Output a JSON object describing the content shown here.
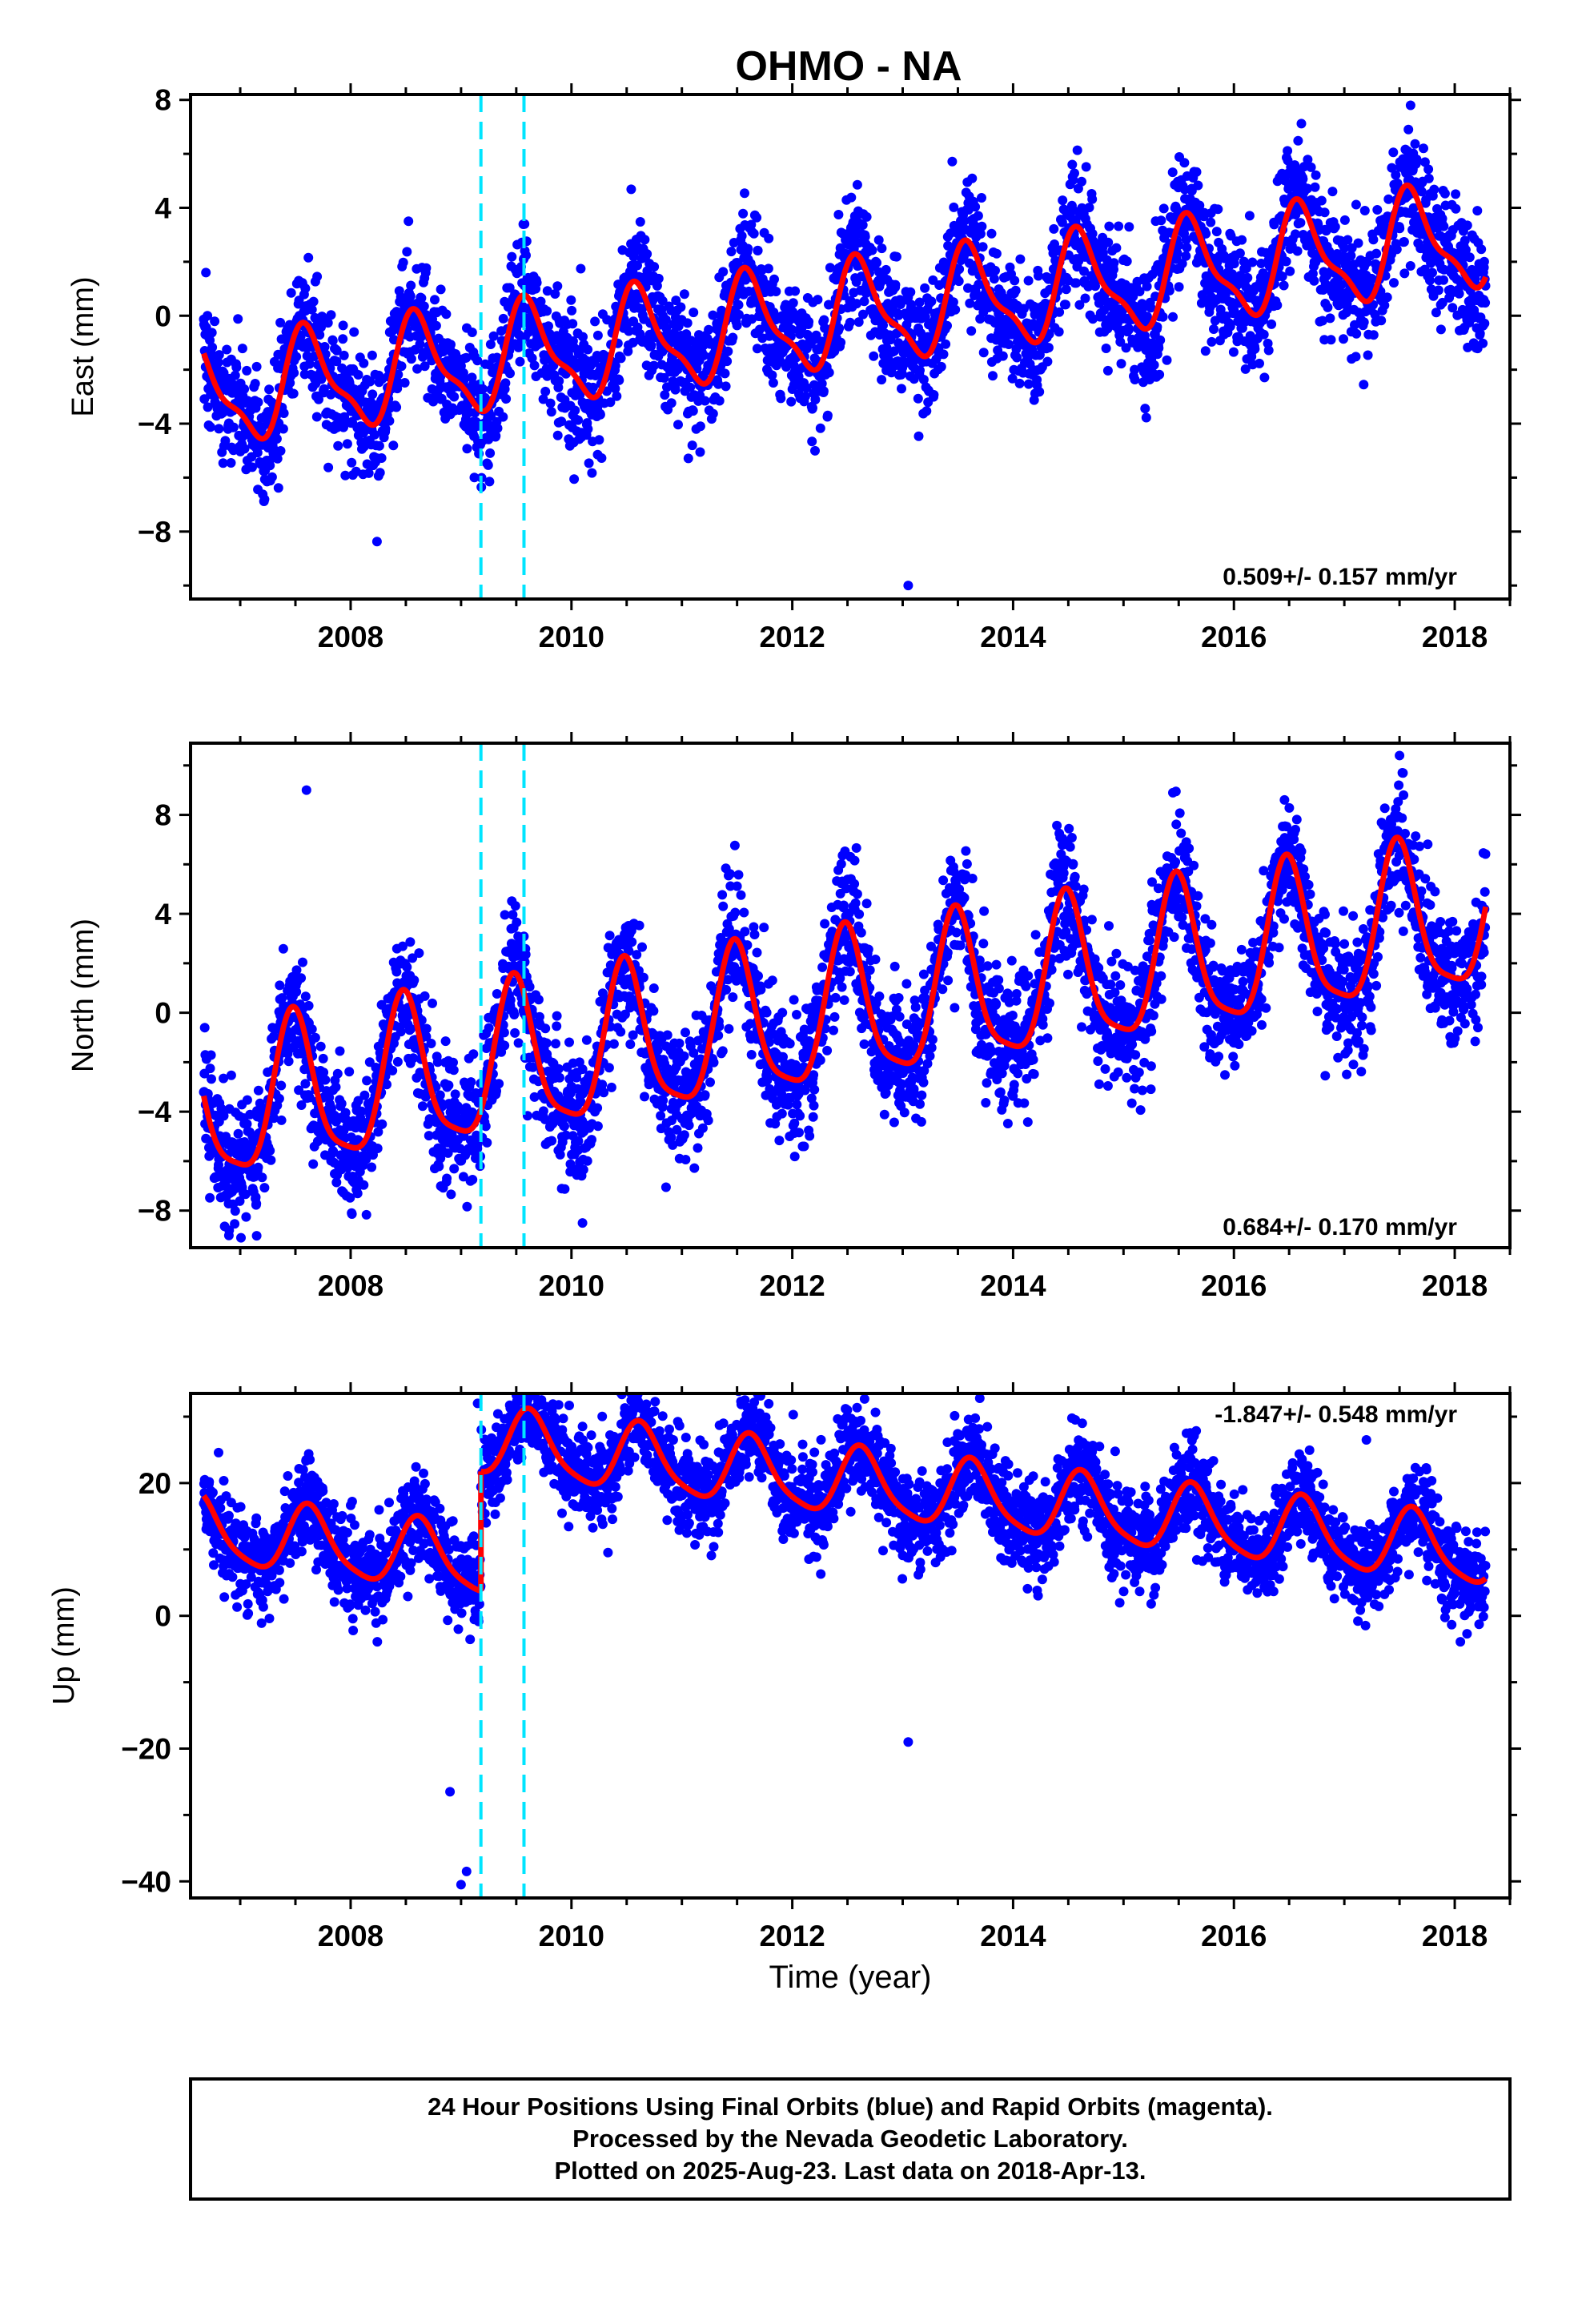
{
  "title": "OHMO - NA",
  "chart_data": [
    {
      "type": "scatter",
      "ylabel": "East (mm)",
      "rate": "0.509+/- 0.157 mm/yr",
      "xlim": [
        2006.55,
        2018.5
      ],
      "ylim": [
        -10.5,
        8.2
      ],
      "yticks": [
        -8,
        -4,
        0,
        4,
        8
      ],
      "yticklabels": [
        "−8",
        "−4",
        "0",
        "4",
        "8"
      ],
      "xticks": [
        2008,
        2010,
        2012,
        2014,
        2016,
        2018
      ],
      "xticklabels": [
        "2008",
        "2010",
        "2012",
        "2014",
        "2016",
        "2018"
      ],
      "point_color": "#0000ff",
      "model_color": "#ff0000",
      "offset_color": "#00e5ff",
      "offsets": [
        2009.18,
        2009.57
      ],
      "data_range": [
        2006.67,
        2018.28
      ],
      "trend": {
        "rate": 0.509,
        "ref_year": 2012.5,
        "intercept": 0.0
      },
      "seasonal": {
        "annual_amp": 1.8,
        "annual_phase": 4.0,
        "semi_amp": 0.6,
        "semi_phase": 1.2
      },
      "steps": [],
      "noise_sd": 1.15,
      "outliers": [
        {
          "x": 2013.05,
          "y": -10.0
        },
        {
          "x": 2008.15,
          "y": -5.5
        },
        {
          "x": 2017.6,
          "y": 7.8
        }
      ]
    },
    {
      "type": "scatter",
      "ylabel": "North (mm)",
      "rate": "0.684+/- 0.170 mm/yr",
      "xlim": [
        2006.55,
        2018.5
      ],
      "ylim": [
        -9.5,
        10.9
      ],
      "yticks": [
        -8,
        -4,
        0,
        4,
        8
      ],
      "yticklabels": [
        "−8",
        "−4",
        "0",
        "4",
        "8"
      ],
      "xticks": [
        2008,
        2010,
        2012,
        2014,
        2016,
        2018
      ],
      "xticklabels": [
        "2008",
        "2010",
        "2012",
        "2014",
        "2016",
        "2018"
      ],
      "point_color": "#0000ff",
      "model_color": "#ff0000",
      "offset_color": "#00e5ff",
      "offsets": [
        2009.18,
        2009.57
      ],
      "data_range": [
        2006.67,
        2018.28
      ],
      "trend": {
        "rate": 0.684,
        "ref_year": 2012.5,
        "intercept": 0.0
      },
      "seasonal": {
        "annual_amp": 3.0,
        "annual_phase": 4.8,
        "semi_amp": 0.7,
        "semi_phase": 2.0
      },
      "steps": [],
      "noise_sd": 1.3,
      "outliers": [
        {
          "x": 2007.6,
          "y": 9.0
        },
        {
          "x": 2010.1,
          "y": -8.5
        },
        {
          "x": 2006.9,
          "y": -8.8
        },
        {
          "x": 2017.5,
          "y": 10.4
        }
      ]
    },
    {
      "type": "scatter",
      "ylabel": "Up (mm)",
      "xlabel": "Time (year)",
      "rate": "-1.847+/- 0.548 mm/yr",
      "xlim": [
        2006.55,
        2018.5
      ],
      "ylim": [
        -42.5,
        33.5
      ],
      "yticks": [
        -40,
        -20,
        0,
        20
      ],
      "yticklabels": [
        "−40",
        "−20",
        "0",
        "20"
      ],
      "xticks": [
        2008,
        2010,
        2012,
        2014,
        2016,
        2018
      ],
      "xticklabels": [
        "2008",
        "2010",
        "2012",
        "2014",
        "2016",
        "2018"
      ],
      "point_color": "#0000ff",
      "model_color": "#ff0000",
      "offset_color": "#00e5ff",
      "offsets": [
        2009.18,
        2009.57
      ],
      "data_range": [
        2006.67,
        2018.28
      ],
      "trend": {
        "rate": -1.847,
        "ref_year": 2012.5,
        "intercept": 2.0
      },
      "seasonal": {
        "annual_amp": 5.0,
        "annual_phase": 3.9,
        "semi_amp": 1.0,
        "semi_phase": 0.5
      },
      "steps": [
        {
          "x": 2009.18,
          "dy": 18.0
        }
      ],
      "noise_sd": 3.6,
      "outliers": [
        {
          "x": 2009.0,
          "y": -40.5
        },
        {
          "x": 2009.05,
          "y": -38.5
        },
        {
          "x": 2008.9,
          "y": -26.5
        },
        {
          "x": 2009.15,
          "y": 32.0
        },
        {
          "x": 2017.2,
          "y": 26.5
        },
        {
          "x": 2013.05,
          "y": -19.0
        }
      ]
    }
  ],
  "footer": {
    "line1": "24 Hour Positions Using Final Orbits (blue) and Rapid Orbits (magenta).",
    "line2": "Processed by the Nevada Geodetic Laboratory.",
    "line3": "Plotted on 2025-Aug-23. Last data on 2018-Apr-13."
  }
}
